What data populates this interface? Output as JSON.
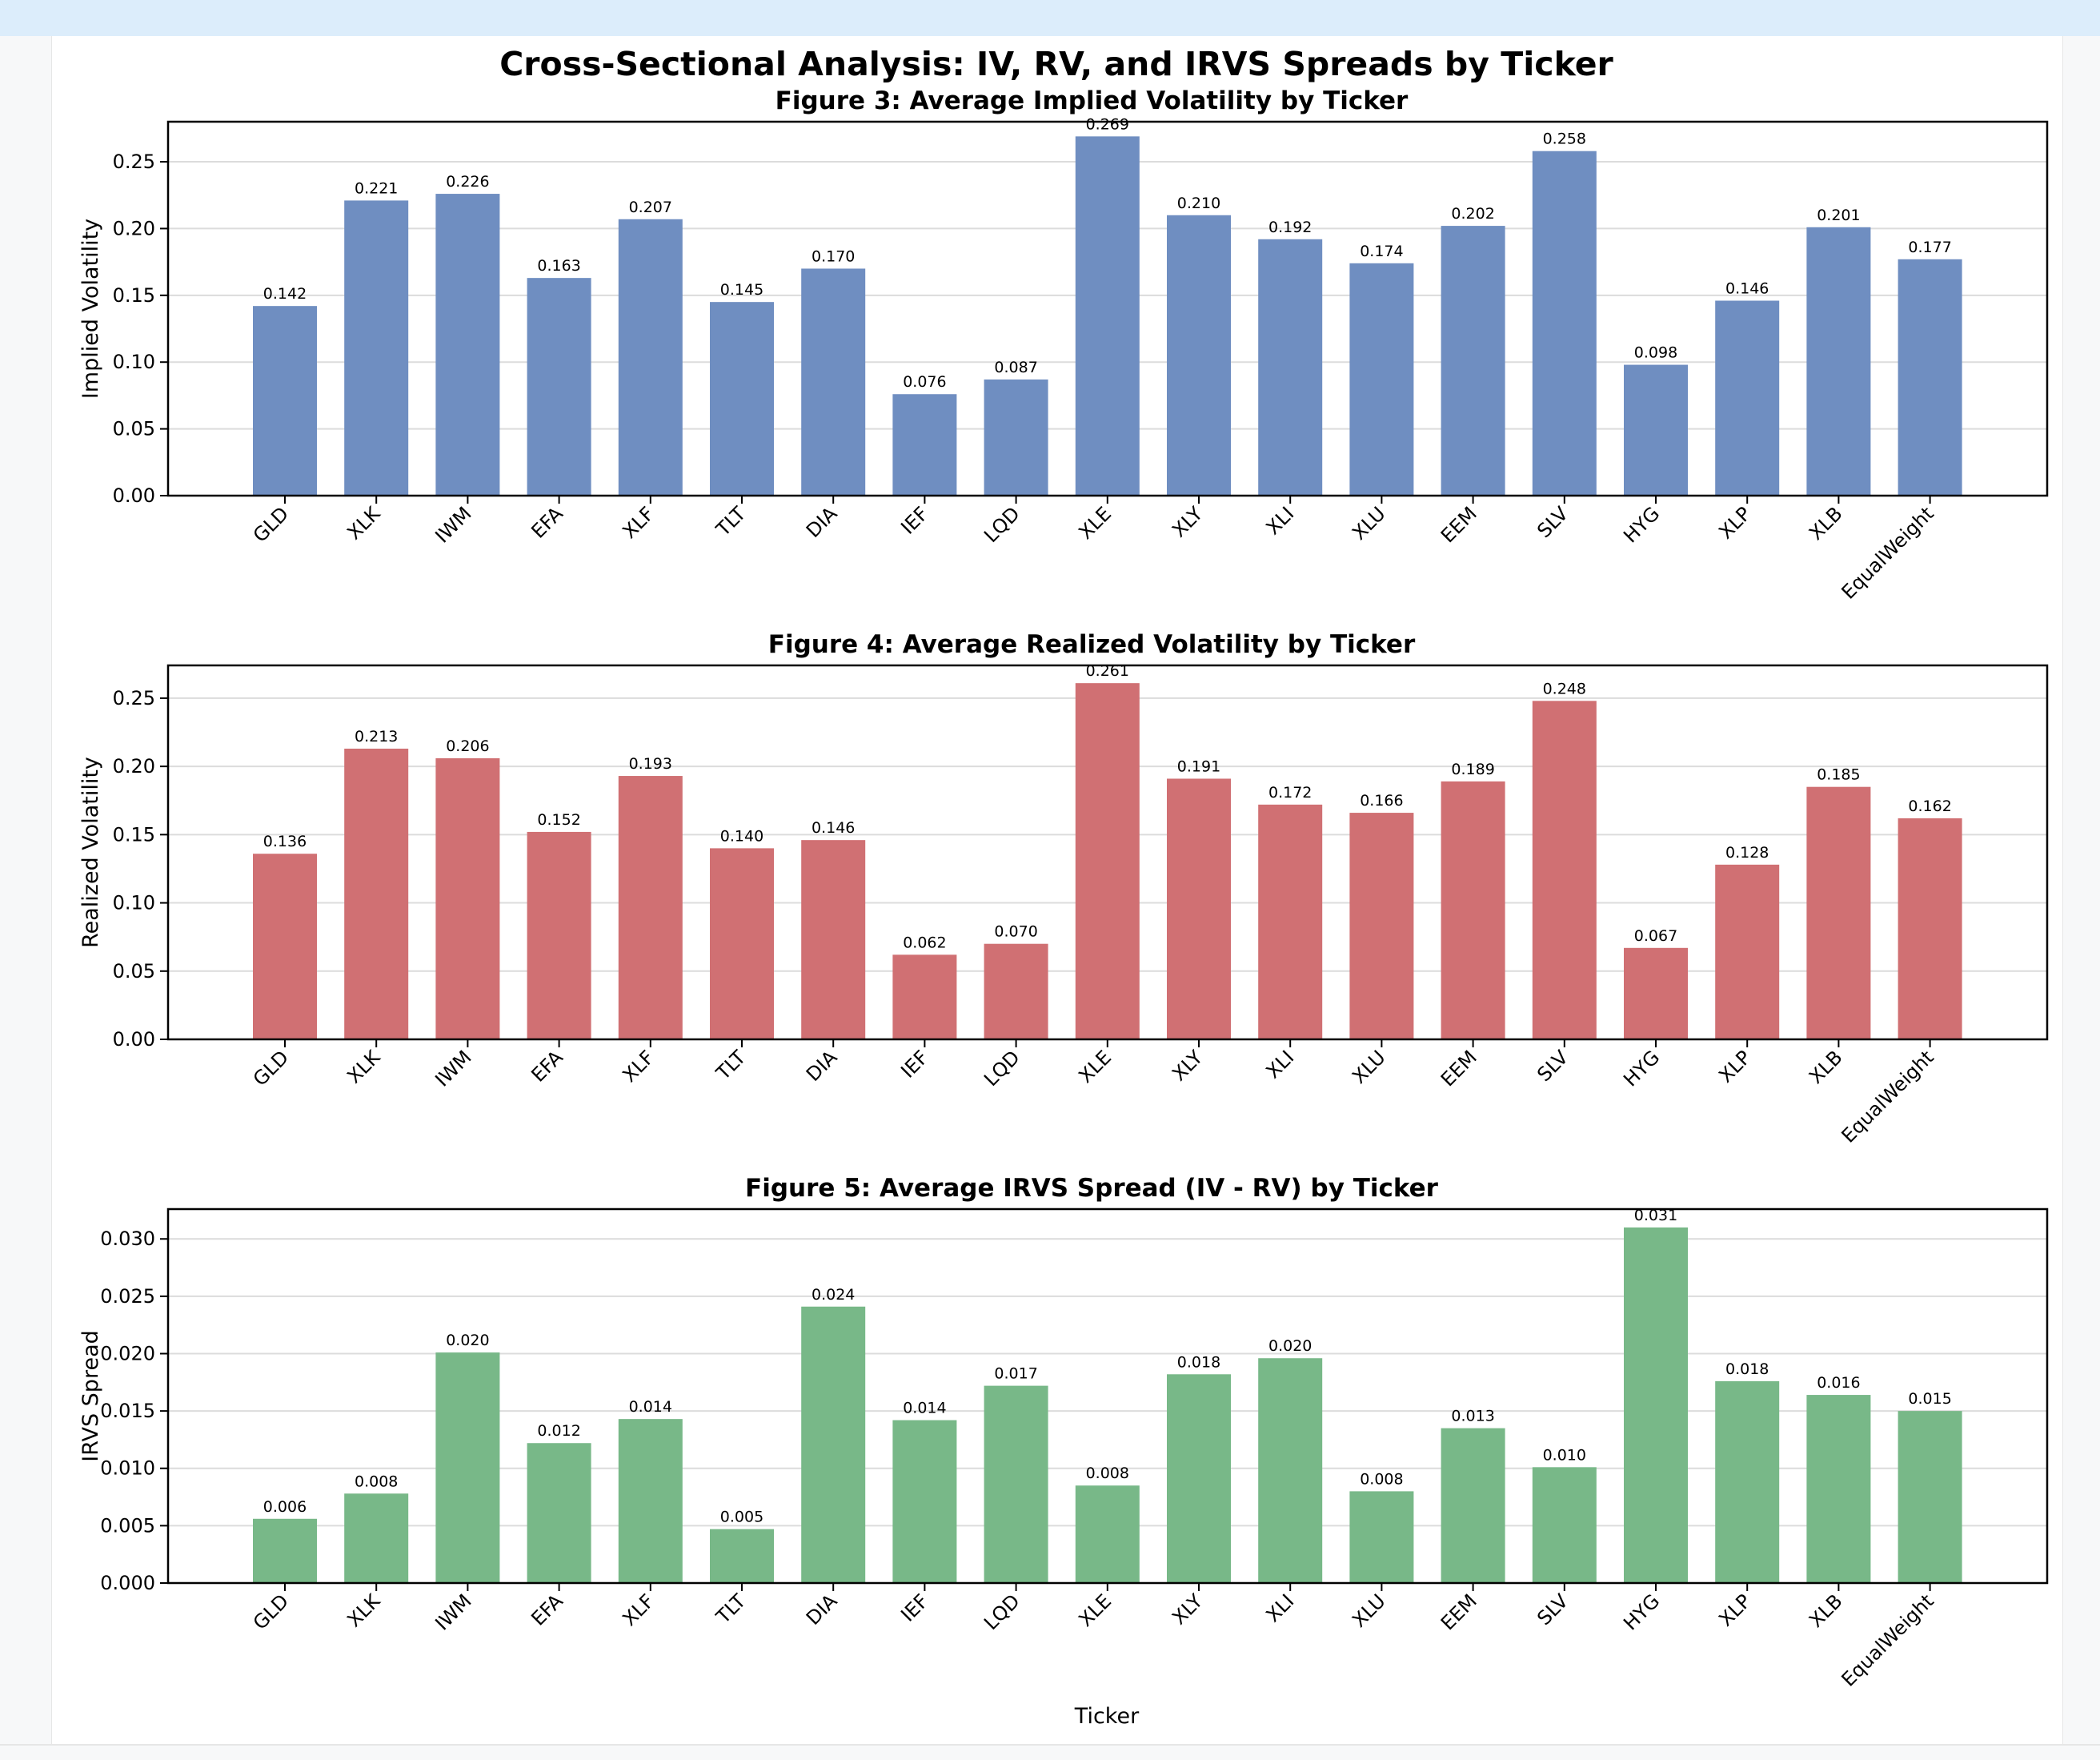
{
  "figure_title": "Cross-Sectional Analysis: IV, RV, and IRVS Spreads by Ticker",
  "chart_data": [
    {
      "type": "bar",
      "title": "Figure 3: Average Implied Volatility by Ticker",
      "xlabel": "",
      "ylabel": "Implied Volatility",
      "ylim": [
        0,
        0.28
      ],
      "yticks": [
        "0.00",
        "0.05",
        "0.10",
        "0.15",
        "0.20",
        "0.25"
      ],
      "grid": "horizontal",
      "color": "#6f8ec1",
      "categories": [
        "GLD",
        "XLK",
        "IWM",
        "EFA",
        "XLF",
        "TLT",
        "DIA",
        "IEF",
        "LQD",
        "XLE",
        "XLY",
        "XLI",
        "XLU",
        "EEM",
        "SLV",
        "HYG",
        "XLP",
        "XLB",
        "EqualWeight"
      ],
      "values": [
        0.142,
        0.221,
        0.226,
        0.163,
        0.207,
        0.145,
        0.17,
        0.076,
        0.087,
        0.269,
        0.21,
        0.192,
        0.174,
        0.202,
        0.258,
        0.098,
        0.146,
        0.201,
        0.177
      ],
      "labels": [
        "0.142",
        "0.221",
        "0.226",
        "0.163",
        "0.207",
        "0.145",
        "0.170",
        "0.076",
        "0.087",
        "0.269",
        "0.210",
        "0.192",
        "0.174",
        "0.202",
        "0.258",
        "0.098",
        "0.146",
        "0.201",
        "0.177"
      ]
    },
    {
      "type": "bar",
      "title": "Figure 4: Average Realized Volatility by Ticker",
      "xlabel": "",
      "ylabel": "Realized Volatility",
      "ylim": [
        0,
        0.274
      ],
      "yticks": [
        "0.00",
        "0.05",
        "0.10",
        "0.15",
        "0.20",
        "0.25"
      ],
      "grid": "horizontal",
      "color": "#d07073",
      "categories": [
        "GLD",
        "XLK",
        "IWM",
        "EFA",
        "XLF",
        "TLT",
        "DIA",
        "IEF",
        "LQD",
        "XLE",
        "XLY",
        "XLI",
        "XLU",
        "EEM",
        "SLV",
        "HYG",
        "XLP",
        "XLB",
        "EqualWeight"
      ],
      "values": [
        0.136,
        0.213,
        0.206,
        0.152,
        0.193,
        0.14,
        0.146,
        0.062,
        0.07,
        0.261,
        0.191,
        0.172,
        0.166,
        0.189,
        0.248,
        0.067,
        0.128,
        0.185,
        0.162
      ],
      "labels": [
        "0.136",
        "0.213",
        "0.206",
        "0.152",
        "0.193",
        "0.140",
        "0.146",
        "0.062",
        "0.070",
        "0.261",
        "0.191",
        "0.172",
        "0.166",
        "0.189",
        "0.248",
        "0.067",
        "0.128",
        "0.185",
        "0.162"
      ]
    },
    {
      "type": "bar",
      "title": "Figure 5: Average IRVS Spread (IV - RV) by Ticker",
      "xlabel": "Ticker",
      "ylabel": "IRVS Spread",
      "ylim": [
        0,
        0.0326
      ],
      "yticks": [
        "0.000",
        "0.005",
        "0.010",
        "0.015",
        "0.020",
        "0.025",
        "0.030"
      ],
      "grid": "horizontal",
      "color": "#78b888",
      "categories": [
        "GLD",
        "XLK",
        "IWM",
        "EFA",
        "XLF",
        "TLT",
        "DIA",
        "IEF",
        "LQD",
        "XLE",
        "XLY",
        "XLI",
        "XLU",
        "EEM",
        "SLV",
        "HYG",
        "XLP",
        "XLB",
        "EqualWeight"
      ],
      "values": [
        0.0056,
        0.0078,
        0.0201,
        0.0122,
        0.0143,
        0.0047,
        0.0241,
        0.0142,
        0.0172,
        0.0085,
        0.0182,
        0.0196,
        0.008,
        0.0135,
        0.0101,
        0.031,
        0.0176,
        0.0164,
        0.015
      ],
      "labels": [
        "0.006",
        "0.008",
        "0.020",
        "0.012",
        "0.014",
        "0.005",
        "0.024",
        "0.014",
        "0.017",
        "0.008",
        "0.018",
        "0.020",
        "0.008",
        "0.013",
        "0.010",
        "0.031",
        "0.018",
        "0.016",
        "0.015"
      ]
    }
  ]
}
